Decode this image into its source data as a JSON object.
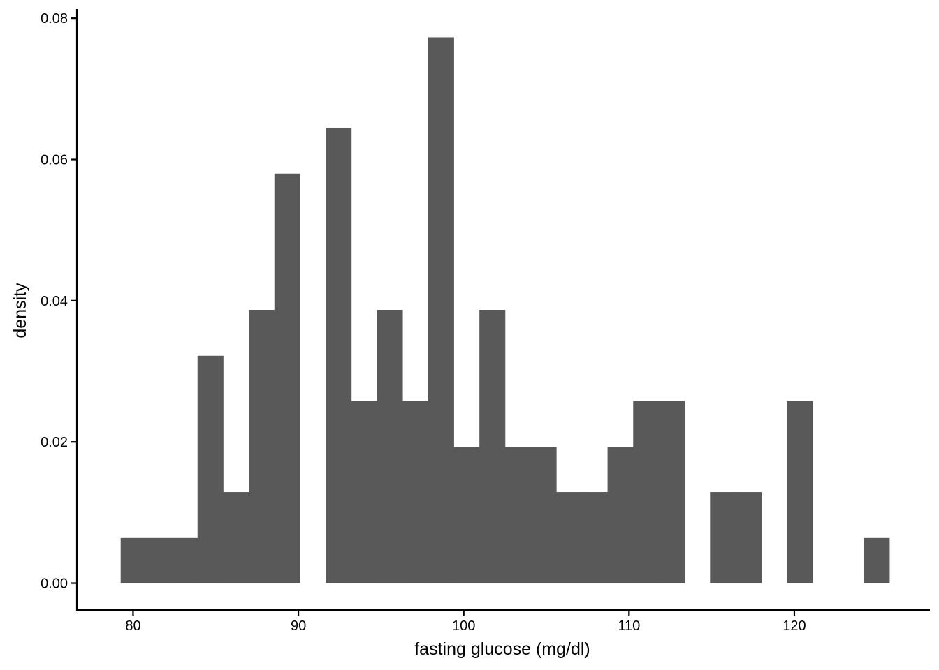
{
  "chart_data": {
    "type": "bar",
    "subtype": "histogram",
    "xlabel": "fasting glucose (mg/dl)",
    "ylabel": "density",
    "xlim": [
      76.6,
      128.2
    ],
    "ylim": [
      -0.0038,
      0.0813
    ],
    "x_ticks": [
      80,
      90,
      100,
      110,
      120
    ],
    "y_ticks": [
      0.0,
      0.02,
      0.04,
      0.06,
      0.08
    ],
    "y_tick_labels": [
      "0.00",
      "0.02",
      "0.04",
      "0.06",
      "0.08"
    ],
    "grid": false,
    "legend": "none",
    "bar_color": "#595959",
    "bins": [
      {
        "x0": 79.25,
        "x1": 80.8,
        "value": 0.0064
      },
      {
        "x0": 80.8,
        "x1": 82.35,
        "value": 0.0064
      },
      {
        "x0": 82.35,
        "x1": 83.9,
        "value": 0.0064
      },
      {
        "x0": 83.9,
        "x1": 85.45,
        "value": 0.0322
      },
      {
        "x0": 85.45,
        "x1": 87.0,
        "value": 0.0129
      },
      {
        "x0": 87.0,
        "x1": 88.55,
        "value": 0.0387
      },
      {
        "x0": 88.55,
        "x1": 90.1,
        "value": 0.058
      },
      {
        "x0": 90.1,
        "x1": 91.65,
        "value": 0.0
      },
      {
        "x0": 91.65,
        "x1": 93.2,
        "value": 0.0645
      },
      {
        "x0": 93.2,
        "x1": 94.75,
        "value": 0.0258
      },
      {
        "x0": 94.75,
        "x1": 96.3,
        "value": 0.0387
      },
      {
        "x0": 96.3,
        "x1": 97.85,
        "value": 0.0258
      },
      {
        "x0": 97.85,
        "x1": 99.4,
        "value": 0.0773
      },
      {
        "x0": 99.4,
        "x1": 100.95,
        "value": 0.0193
      },
      {
        "x0": 100.95,
        "x1": 102.5,
        "value": 0.0387
      },
      {
        "x0": 102.5,
        "x1": 104.05,
        "value": 0.0193
      },
      {
        "x0": 104.05,
        "x1": 105.6,
        "value": 0.0193
      },
      {
        "x0": 105.6,
        "x1": 107.15,
        "value": 0.0129
      },
      {
        "x0": 107.15,
        "x1": 108.7,
        "value": 0.0129
      },
      {
        "x0": 108.7,
        "x1": 110.25,
        "value": 0.0193
      },
      {
        "x0": 110.25,
        "x1": 111.8,
        "value": 0.0258
      },
      {
        "x0": 111.8,
        "x1": 113.35,
        "value": 0.0258
      },
      {
        "x0": 113.35,
        "x1": 114.9,
        "value": 0.0
      },
      {
        "x0": 114.9,
        "x1": 116.45,
        "value": 0.0129
      },
      {
        "x0": 116.45,
        "x1": 118.0,
        "value": 0.0129
      },
      {
        "x0": 118.0,
        "x1": 119.55,
        "value": 0.0
      },
      {
        "x0": 119.55,
        "x1": 121.1,
        "value": 0.0258
      },
      {
        "x0": 121.1,
        "x1": 122.65,
        "value": 0.0
      },
      {
        "x0": 122.65,
        "x1": 124.2,
        "value": 0.0
      },
      {
        "x0": 124.2,
        "x1": 125.75,
        "value": 0.0064
      }
    ]
  }
}
